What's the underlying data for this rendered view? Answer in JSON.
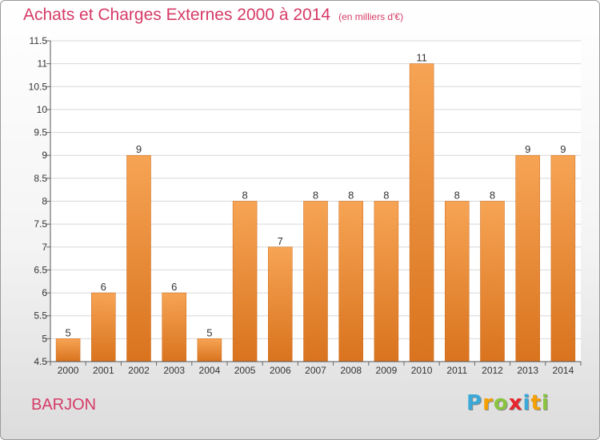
{
  "header": {
    "title": "Achats et Charges Externes 2000 à 2014",
    "subtitle": "(en milliers d'€)"
  },
  "footer": {
    "entity": "BARJON",
    "logo_letters": [
      "P",
      "r",
      "o",
      "x",
      "i",
      "t",
      "i"
    ],
    "logo_colors": [
      "#3aa9d8",
      "#f5a000",
      "#8bc43f",
      "#e8242c",
      "#3aa9d8",
      "#f5a000",
      "#8bc43f"
    ]
  },
  "chart_data": {
    "type": "bar",
    "categories": [
      "2000",
      "2001",
      "2002",
      "2003",
      "2004",
      "2005",
      "2006",
      "2007",
      "2008",
      "2009",
      "2010",
      "2011",
      "2012",
      "2013",
      "2014"
    ],
    "values": [
      5,
      6,
      9,
      6,
      5,
      8,
      7,
      8,
      8,
      8,
      11,
      8,
      8,
      9,
      9
    ],
    "data_labels": [
      "5",
      "6",
      "9",
      "6",
      "5",
      "8",
      "7",
      "8",
      "8",
      "8",
      "11",
      "8",
      "8",
      "9",
      "9"
    ],
    "ylim": [
      4.5,
      11.5
    ],
    "yticks": [
      "4.5",
      "5",
      "5.5",
      "6",
      "6.5",
      "7",
      "7.5",
      "8",
      "8.5",
      "9",
      "9.5",
      "10",
      "10.5",
      "11",
      "11.5"
    ],
    "grid": true,
    "bar_color_light": "#f6a454",
    "bar_color_dark": "#d9731e",
    "title": "Achats et Charges Externes 2000 à 2014"
  }
}
